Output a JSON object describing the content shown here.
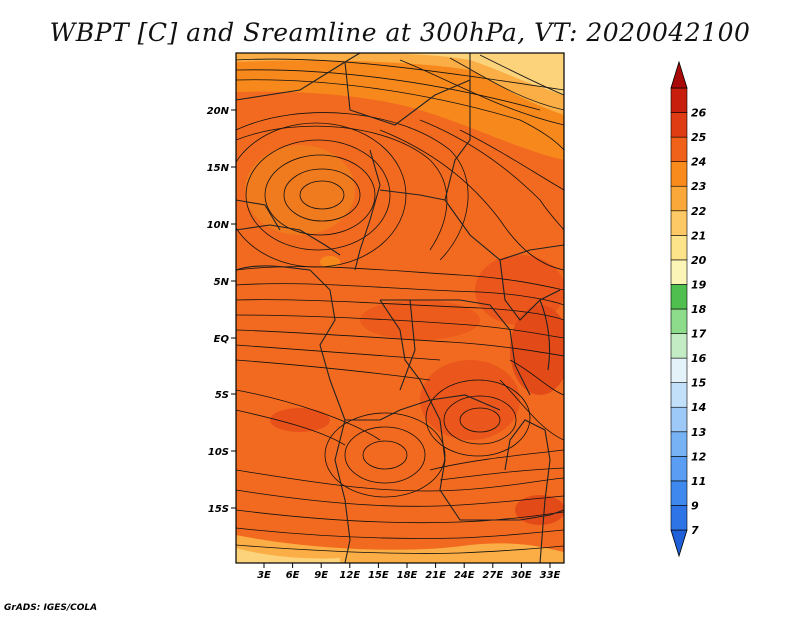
{
  "title": "WBPT [C] and Sreamline at 300hPa, VT: 2020042100",
  "footer": "GrADS: IGES/COLA",
  "map": {
    "variable": "WBPT [C]",
    "overlay": "Streamline",
    "level": "300hPa",
    "valid_time": "2020042100",
    "lon_labels": [
      "3E",
      "6E",
      "9E",
      "12E",
      "15E",
      "18E",
      "21E",
      "24E",
      "27E",
      "30E",
      "33E"
    ],
    "lat_labels": [
      "20N",
      "15N",
      "10N",
      "5N",
      "EQ",
      "5S",
      "10S",
      "15S"
    ]
  },
  "colorbar": {
    "levels": [
      "7",
      "9",
      "11",
      "12",
      "13",
      "14",
      "15",
      "16",
      "17",
      "18",
      "19",
      "20",
      "21",
      "22",
      "23",
      "24",
      "25",
      "26"
    ],
    "colors": [
      "#1f5fd8",
      "#2f74e6",
      "#3f88ee",
      "#5a9df2",
      "#77b2f5",
      "#9cc9f8",
      "#c2e0fa",
      "#e4f3f9",
      "#c4ecc4",
      "#8cdc8c",
      "#4fc04f",
      "#fbf5b8",
      "#fde38a",
      "#fdc866",
      "#fba83a",
      "#f98a1c",
      "#f0621a",
      "#e03c14",
      "#c81e0e",
      "#a80a0a"
    ],
    "colors_hint": "bottom-to-top"
  },
  "colors": {
    "field_dominant": "#f26a1f",
    "field_warm_orange": "#f7891c",
    "field_dark": "#e8501a",
    "field_yellow": "#fcd27a"
  }
}
